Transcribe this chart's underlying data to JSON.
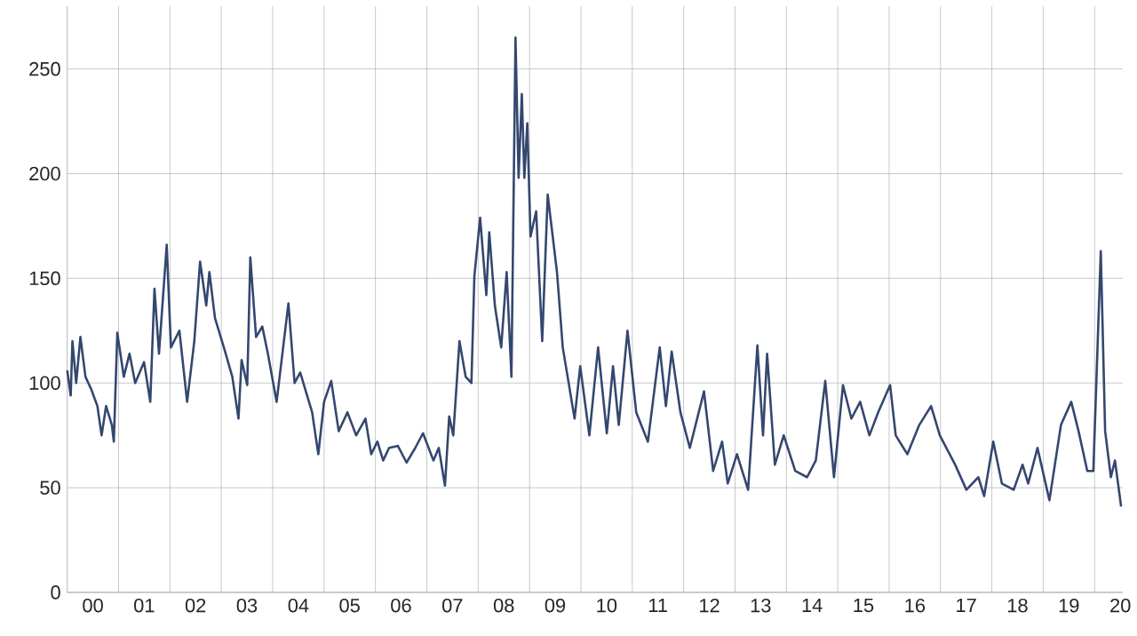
{
  "chart_data": {
    "type": "line",
    "color": "#34476f",
    "grid": true,
    "xlim": [
      "2000-01-01",
      "2020-07-19"
    ],
    "ylim": [
      0,
      280
    ],
    "yticks": [
      0,
      50,
      100,
      150,
      200,
      250
    ],
    "xticks": [
      {
        "value": "2000-07-02",
        "label": "00"
      },
      {
        "value": "2001-07-02",
        "label": "01"
      },
      {
        "value": "2002-07-02",
        "label": "02"
      },
      {
        "value": "2003-07-02",
        "label": "03"
      },
      {
        "value": "2004-07-02",
        "label": "04"
      },
      {
        "value": "2005-07-02",
        "label": "05"
      },
      {
        "value": "2006-07-02",
        "label": "06"
      },
      {
        "value": "2007-07-02",
        "label": "07"
      },
      {
        "value": "2008-07-02",
        "label": "08"
      },
      {
        "value": "2009-07-02",
        "label": "09"
      },
      {
        "value": "2010-07-02",
        "label": "10"
      },
      {
        "value": "2011-07-02",
        "label": "11"
      },
      {
        "value": "2012-07-02",
        "label": "12"
      },
      {
        "value": "2013-07-02",
        "label": "13"
      },
      {
        "value": "2014-07-02",
        "label": "14"
      },
      {
        "value": "2015-07-02",
        "label": "15"
      },
      {
        "value": "2016-07-02",
        "label": "16"
      },
      {
        "value": "2017-07-02",
        "label": "17"
      },
      {
        "value": "2018-07-02",
        "label": "18"
      },
      {
        "value": "2019-07-02",
        "label": "19"
      },
      {
        "value": "2020-07-02",
        "label": "20"
      },
      {
        "value": "2001-01-01",
        "label": null
      },
      {
        "value": "2002-01-01",
        "label": null
      },
      {
        "value": "2003-01-01",
        "label": null
      },
      {
        "value": "2004-01-01",
        "label": null
      },
      {
        "value": "2005-01-01",
        "label": null
      },
      {
        "value": "2006-01-01",
        "label": null
      },
      {
        "value": "2007-01-01",
        "label": null
      },
      {
        "value": "2008-01-01",
        "label": null
      },
      {
        "value": "2009-01-01",
        "label": null
      },
      {
        "value": "2010-01-01",
        "label": null
      },
      {
        "value": "2011-01-01",
        "label": null
      },
      {
        "value": "2012-01-01",
        "label": null
      },
      {
        "value": "2013-01-01",
        "label": null
      },
      {
        "value": "2014-01-01",
        "label": null
      },
      {
        "value": "2015-01-01",
        "label": null
      },
      {
        "value": "2016-01-01",
        "label": null
      },
      {
        "value": "2017-01-01",
        "label": null
      },
      {
        "value": "2018-01-01",
        "label": null
      },
      {
        "value": "2019-01-01",
        "label": null
      },
      {
        "value": "2020-01-01",
        "label": null
      }
    ],
    "x": [
      "2000-01-01",
      "2000-01-26",
      "2000-02-07",
      "2000-03-05",
      "2000-04-04",
      "2000-05-10",
      "2000-06-20",
      "2000-08-03",
      "2000-09-02",
      "2000-10-04",
      "2000-11-14",
      "2000-11-28",
      "2000-12-23",
      "2001-02-07",
      "2001-03-20",
      "2001-04-29",
      "2001-07-01",
      "2001-08-14",
      "2001-09-13",
      "2001-10-15",
      "2001-12-09",
      "2002-01-08",
      "2002-03-09",
      "2002-05-03",
      "2002-06-23",
      "2002-08-03",
      "2002-09-16",
      "2002-10-08",
      "2002-11-17",
      "2003-01-19",
      "2003-03-20",
      "2003-05-03",
      "2003-05-25",
      "2003-07-04",
      "2003-07-26",
      "2003-09-05",
      "2003-10-19",
      "2003-11-28",
      "2004-01-29",
      "2004-04-22",
      "2004-06-05",
      "2004-07-15",
      "2004-10-08",
      "2004-11-21",
      "2005-01-01",
      "2005-02-21",
      "2005-04-15",
      "2005-06-16",
      "2005-08-17",
      "2005-10-22",
      "2005-12-02",
      "2006-01-15",
      "2006-02-25",
      "2006-04-08",
      "2006-06-09",
      "2006-08-10",
      "2006-10-11",
      "2006-12-05",
      "2007-02-17",
      "2007-03-27",
      "2007-05-10",
      "2007-06-09",
      "2007-07-08",
      "2007-08-21",
      "2007-10-04",
      "2007-11-14",
      "2007-12-05",
      "2008-01-15",
      "2008-02-28",
      "2008-03-20",
      "2008-04-29",
      "2008-06-13",
      "2008-07-22",
      "2008-08-25",
      "2008-09-23",
      "2008-10-15",
      "2008-11-07",
      "2008-11-25",
      "2008-12-16",
      "2009-01-08",
      "2009-02-17",
      "2009-04-01",
      "2009-05-10",
      "2009-07-15",
      "2009-08-25",
      "2009-11-17",
      "2009-12-27",
      "2010-03-02",
      "2010-05-03",
      "2010-07-04",
      "2010-08-17",
      "2010-09-27",
      "2010-11-28",
      "2011-01-29",
      "2011-04-22",
      "2011-07-15",
      "2011-08-28",
      "2011-10-08",
      "2011-12-09",
      "2012-02-14",
      "2012-05-25",
      "2012-07-29",
      "2012-10-01",
      "2012-11-10",
      "2013-01-15",
      "2013-04-04",
      "2013-06-09",
      "2013-07-19",
      "2013-08-17",
      "2013-10-11",
      "2013-12-13",
      "2014-03-05",
      "2014-05-28",
      "2014-07-29",
      "2014-10-04",
      "2014-12-05",
      "2015-02-07",
      "2015-04-08",
      "2015-06-09",
      "2015-08-14",
      "2015-10-15",
      "2016-01-08",
      "2016-02-17",
      "2016-05-10",
      "2016-08-03",
      "2016-10-26",
      "2016-12-27",
      "2017-04-15",
      "2017-07-04",
      "2017-09-27",
      "2017-11-07",
      "2018-01-11",
      "2018-03-13",
      "2018-06-05",
      "2018-08-07",
      "2018-09-16",
      "2018-11-21",
      "2019-02-14",
      "2019-05-07",
      "2019-07-19",
      "2019-09-09",
      "2019-11-10",
      "2019-12-23",
      "2020-02-14",
      "2020-03-16",
      "2020-04-26",
      "2020-05-25",
      "2020-07-08"
    ],
    "values": [
      106,
      94,
      120,
      100,
      122,
      103,
      97,
      89,
      75,
      89,
      80,
      72,
      124,
      103,
      114,
      100,
      110,
      91,
      145,
      114,
      166,
      117,
      125,
      91,
      120,
      158,
      137,
      153,
      131,
      117,
      103,
      83,
      111,
      99,
      160,
      122,
      127,
      114,
      91,
      138,
      100,
      105,
      86,
      66,
      91,
      101,
      77,
      86,
      75,
      83,
      66,
      72,
      63,
      69,
      70,
      62,
      69,
      76,
      63,
      69,
      51,
      84,
      75,
      120,
      103,
      100,
      151,
      179,
      142,
      172,
      137,
      117,
      153,
      103,
      265,
      198,
      238,
      198,
      224,
      170,
      182,
      120,
      190,
      153,
      117,
      83,
      108,
      75,
      117,
      76,
      108,
      80,
      125,
      86,
      72,
      117,
      89,
      115,
      86,
      69,
      96,
      58,
      72,
      52,
      66,
      49,
      118,
      75,
      114,
      61,
      75,
      58,
      55,
      63,
      101,
      55,
      99,
      83,
      91,
      75,
      86,
      99,
      75,
      66,
      80,
      89,
      75,
      61,
      49,
      55,
      46,
      72,
      52,
      49,
      61,
      52,
      69,
      44,
      80,
      91,
      77,
      58,
      58,
      163,
      77,
      55,
      63,
      41
    ]
  }
}
